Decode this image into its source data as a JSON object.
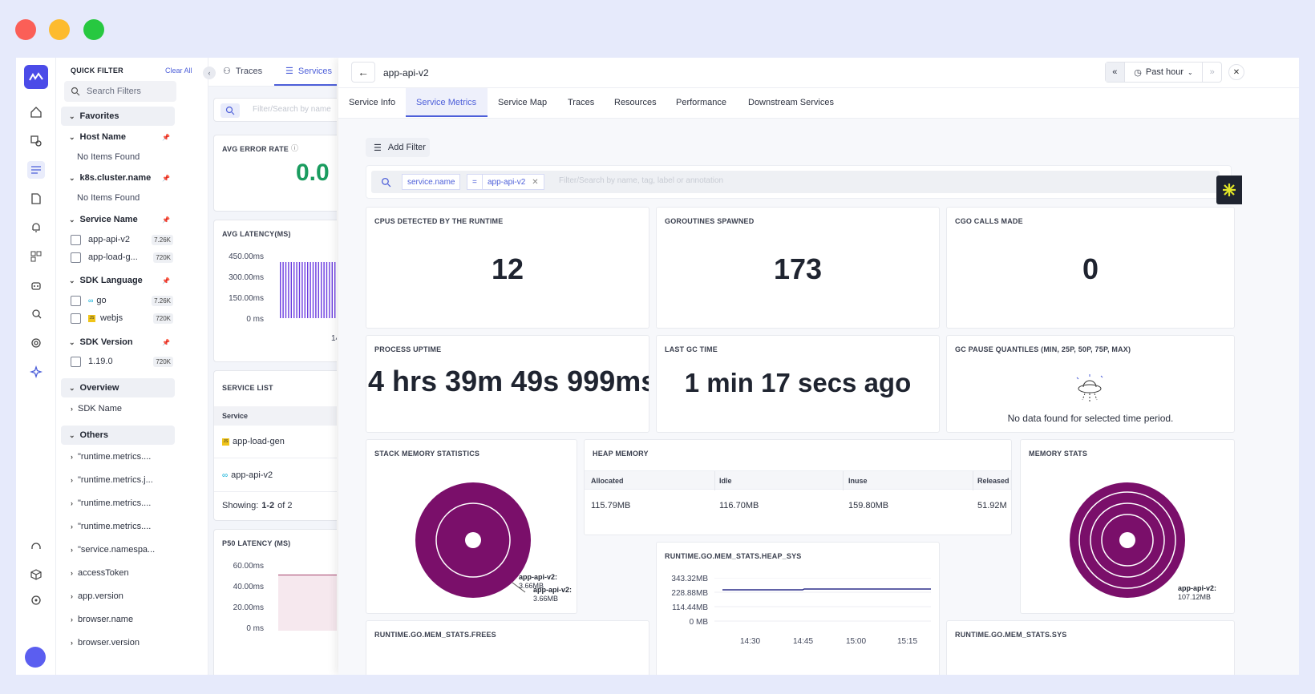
{
  "window": {
    "buttons": [
      "close",
      "minimize",
      "maximize"
    ]
  },
  "rail": {
    "icons": [
      "home-icon",
      "infra-icon",
      "logs-icon",
      "doc-icon",
      "alert-icon",
      "dashboard-icon",
      "bot-icon",
      "user-search-icon",
      "settings-gear-icon",
      "sparkle-icon"
    ],
    "bottom_icons": [
      "support-icon",
      "box-icon",
      "settings-icon"
    ]
  },
  "filter": {
    "title": "QUICK FILTER",
    "clear_all": "Clear All",
    "search_placeholder": "Search Filters",
    "favorites": "Favorites",
    "host_name": "Host Name",
    "host_name_empty": "No Items Found",
    "k8s_cluster": "k8s.cluster.name",
    "k8s_cluster_empty": "No Items Found",
    "service_name": "Service Name",
    "service_items": [
      {
        "label": "app-api-v2",
        "count": "7.26K"
      },
      {
        "label": "app-load-g...",
        "count": "720K"
      }
    ],
    "sdk_language": "SDK Language",
    "sdk_items": [
      {
        "label": "go",
        "count": "7.26K",
        "icon": "go-icon"
      },
      {
        "label": "webjs",
        "count": "720K",
        "icon": "js-icon"
      }
    ],
    "sdk_version": "SDK Version",
    "sdk_version_items": [
      {
        "label": "1.19.0",
        "count": "720K"
      }
    ],
    "overview": "Overview",
    "sdk_name": "SDK Name",
    "others": "Others",
    "others_items": [
      "\"runtime.metrics....",
      "\"runtime.metrics.j...",
      "\"runtime.metrics....",
      "\"runtime.metrics....",
      "\"service.namespa...",
      "accessToken",
      "app.version",
      "browser.name",
      "browser.version"
    ]
  },
  "mid": {
    "tabs": [
      "Traces",
      "Services"
    ],
    "search_placeholder": "Filter/Search by name",
    "error_rate_title": "AVG ERROR RATE",
    "error_rate_value": "0.0",
    "latency_title": "AVG LATENCY(MS)",
    "latency_ticks": [
      "450.00ms",
      "300.00ms",
      "150.00ms",
      "0 ms"
    ],
    "latency_xtick": "14",
    "service_list_title": "SERVICE LIST",
    "service_col": "Service",
    "services": [
      {
        "name": "app-load-gen",
        "icon": "js-icon"
      },
      {
        "name": "app-api-v2",
        "icon": "go-icon"
      }
    ],
    "showing_prefix": "Showing:",
    "showing_range": "1-2",
    "showing_suffix": "of 2",
    "p50_title": "P50 LATENCY (MS)",
    "p50_ticks": [
      "60.00ms",
      "40.00ms",
      "20.00ms",
      "0 ms"
    ]
  },
  "overlay": {
    "title": "app-api-v2",
    "time_range": "Past hour",
    "tabs": [
      "Service Info",
      "Service Metrics",
      "Service Map",
      "Traces",
      "Resources",
      "Performance",
      "Downstream Services"
    ],
    "add_filter": "Add Filter",
    "filter_chip_key": "service.name",
    "filter_chip_op": "=",
    "filter_chip_value": "app-api-v2",
    "search_placeholder": "Filter/Search by name, tag, label or annotation",
    "cards": {
      "cpus_title": "CPUS DETECTED BY THE RUNTIME",
      "cpus_value": "12",
      "goroutines_title": "GOROUTINES SPAWNED",
      "goroutines_value": "173",
      "cgo_title": "CGO CALLS MADE",
      "cgo_value": "0",
      "uptime_title": "PROCESS UPTIME",
      "uptime_value": "4 hrs 39m 49s 999ms",
      "gc_title": "LAST GC TIME",
      "gc_value": "1 min 17 secs ago",
      "gcpause_title": "GC PAUSE QUANTILES (MIN, 25P, 50P, 75P, MAX)",
      "gcpause_empty": "No data found for selected time period.",
      "stack_title": "STACK MEMORY STATISTICS",
      "stack_label": "app-api-v2:",
      "stack_value": "3.66MB",
      "stack_label2": "app-api-v2:",
      "stack_value2": "3.66MB",
      "heap_title": "HEAP MEMORY",
      "heap_cols": [
        "Allocated",
        "Idle",
        "Inuse",
        "Released"
      ],
      "heap_values": [
        "115.79MB",
        "116.70MB",
        "159.80MB",
        "51.92M"
      ],
      "memstats_title": "MEMORY STATS",
      "memstats_label": "app-api-v2:",
      "memstats_value": "107.12MB",
      "heap_sys_title": "RUNTIME.GO.MEM_STATS.HEAP_SYS",
      "heap_sys_ticks": [
        "343.32MB",
        "228.88MB",
        "114.44MB",
        "0 MB"
      ],
      "heap_sys_xticks": [
        "14:30",
        "14:45",
        "15:00",
        "15:15"
      ],
      "frees_title": "RUNTIME.GO.MEM_STATS.FREES",
      "sys_title": "RUNTIME.GO.MEM_STATS.SYS"
    },
    "colors": {
      "accent": "#4d5fd9",
      "donut": "#7a0f6a",
      "success": "#1a9c5f"
    }
  }
}
